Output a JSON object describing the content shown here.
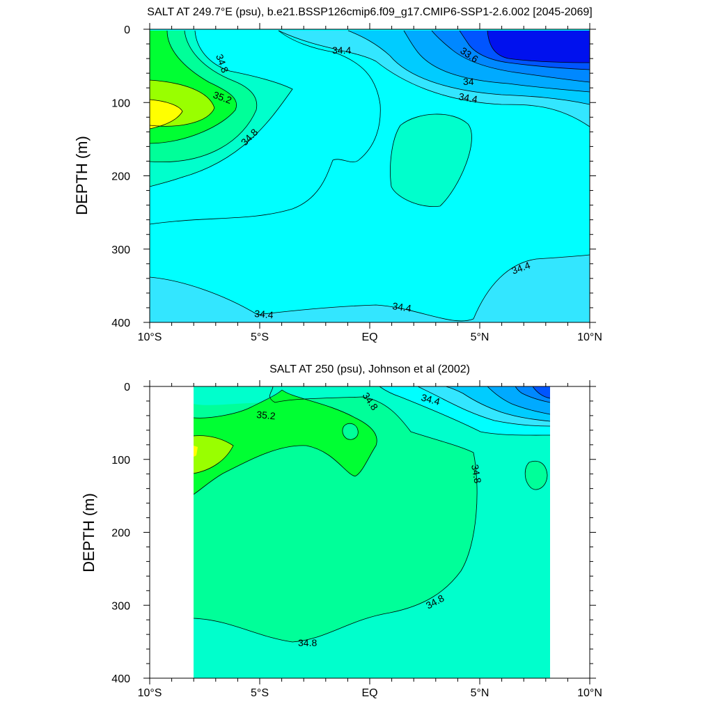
{
  "colors": {
    "yellow": "#ffff00",
    "yellow_green": "#99ff00",
    "green": "#00ff33",
    "spring_green": "#00ff99",
    "aquamarine": "#00ffcc",
    "cyan": "#00ffff",
    "light_blue": "#33e6ff",
    "sky_blue": "#00ccff",
    "blue1": "#00aaff",
    "blue2": "#0088ff",
    "blue3": "#0055ff",
    "deep_blue": "#0011ee"
  },
  "chart_data": [
    {
      "type": "contour",
      "title": "SALT AT 249.7°E (psu), b.e21.BSSP126cmip6.f09_g17.CMIP6-SSP1-2.6.002 [2045-2069]",
      "ylabel": "DEPTH (m)",
      "xlabel": "",
      "x_ticks": [
        "10°S",
        "5°S",
        "EQ",
        "5°N",
        "10°N"
      ],
      "y_ticks": [
        "0",
        "100",
        "200",
        "300",
        "400"
      ],
      "xlim": [
        -10,
        10
      ],
      "ylim": [
        0,
        400
      ],
      "units": "psu",
      "contour_interval": 0.2,
      "contour_labels": [
        "34.8",
        "35.2",
        "34.8",
        "34.4",
        "33.6",
        "34",
        "34.4",
        "34.4",
        "34.4",
        "34.4"
      ]
    },
    {
      "type": "contour",
      "title": "SALT AT 250 (psu), Johnson et al (2002)",
      "ylabel": "DEPTH (m)",
      "xlabel": "",
      "x_ticks": [
        "10°S",
        "5°S",
        "EQ",
        "5°N",
        "10°N"
      ],
      "y_ticks": [
        "0",
        "100",
        "200",
        "300",
        "400"
      ],
      "xlim": [
        -10,
        10
      ],
      "ylim": [
        0,
        400
      ],
      "units": "psu",
      "contour_interval": 0.2,
      "data_xlim": [
        -8,
        8.2
      ],
      "contour_labels": [
        "35.2",
        "34.8",
        "34.4",
        "34.8",
        "34.8",
        "34.8"
      ]
    }
  ]
}
